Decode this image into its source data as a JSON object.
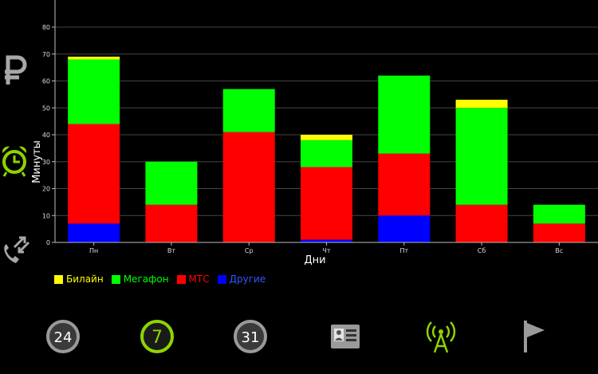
{
  "chart_data": {
    "type": "bar",
    "stacked": true,
    "xlabel": "Дни",
    "ylabel": "Минуты",
    "ylim": [
      0,
      80
    ],
    "yticks": [
      0,
      10,
      20,
      30,
      40,
      50,
      60,
      70,
      80
    ],
    "grid": true,
    "legend_position": "bottom-left",
    "categories": [
      "Пн",
      "Вт",
      "Ср",
      "Чт",
      "Пт",
      "Сб",
      "Вс"
    ],
    "series": [
      {
        "name": "Другие",
        "color": "#0000ff",
        "values": [
          7,
          0,
          0,
          1,
          10,
          0,
          0
        ]
      },
      {
        "name": "МТС",
        "color": "#ff0000",
        "values": [
          37,
          14,
          41,
          27,
          23,
          14,
          7
        ]
      },
      {
        "name": "Мегафон",
        "color": "#00ff00",
        "values": [
          24,
          16,
          16,
          10,
          29,
          36,
          7
        ]
      },
      {
        "name": "Билайн",
        "color": "#ffff00",
        "values": [
          1,
          0,
          0,
          2,
          0,
          3,
          0
        ]
      }
    ],
    "legend_order": [
      "Билайн",
      "Мегафон",
      "МТС",
      "Другие"
    ]
  },
  "legend": [
    {
      "label": "Билайн",
      "color": "#ffff00"
    },
    {
      "label": "Мегафон",
      "color": "#00ff00"
    },
    {
      "label": "МТС",
      "color": "#ff0000"
    },
    {
      "label": "Другие",
      "color": "#0000ff"
    }
  ],
  "side_icons": [
    "ruble-icon",
    "alarm-clock-icon",
    "call-transfer-icon"
  ],
  "bottom_bar": [
    {
      "name": "day-24-button",
      "label": "24",
      "active": false
    },
    {
      "name": "week-7-button",
      "label": "7",
      "active": true
    },
    {
      "name": "month-31-button",
      "label": "31",
      "active": false
    },
    {
      "name": "contacts-card-icon",
      "label": "",
      "active": false
    },
    {
      "name": "antenna-icon",
      "label": "",
      "active": true
    },
    {
      "name": "flag-icon",
      "label": "",
      "active": false
    }
  ],
  "colors": {
    "active": "#8fd400",
    "inactive": "#9a9a9a"
  }
}
